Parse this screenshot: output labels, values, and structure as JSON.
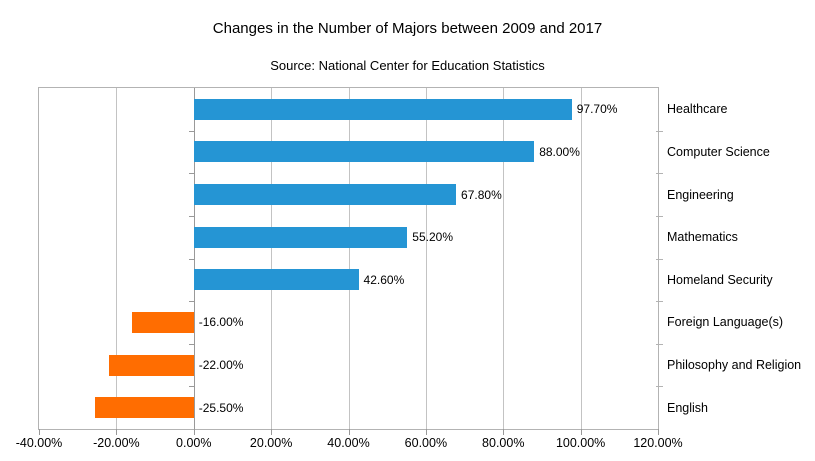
{
  "chart_data": {
    "type": "bar",
    "orientation": "horizontal",
    "title": "Changes in the Number of Majors between 2009 and 2017",
    "subtitle": "Source: National Center for Education Statistics",
    "categories": [
      "Healthcare",
      "Computer Science",
      "Engineering",
      "Mathematics",
      "Homeland Security",
      "Foreign Language(s)",
      "Philosophy and Religion",
      "English"
    ],
    "values": [
      97.7,
      88.0,
      67.8,
      55.2,
      42.6,
      -16.0,
      -22.0,
      -25.5
    ],
    "value_labels": [
      "97.70%",
      "88.00%",
      "67.80%",
      "55.20%",
      "42.60%",
      "-16.00%",
      "-22.00%",
      "-25.50%"
    ],
    "x_ticks": [
      "-40.00%",
      "-20.00%",
      "0.00%",
      "20.00%",
      "40.00%",
      "60.00%",
      "80.00%",
      "100.00%",
      "120.00%"
    ],
    "x_tick_values": [
      -40,
      -20,
      0,
      20,
      40,
      60,
      80,
      100,
      120
    ],
    "xlim": [
      -40,
      120
    ],
    "xlabel": "",
    "ylabel": "",
    "grid": "vertical",
    "legend": "none",
    "bar_colors": {
      "positive": "#2595d4",
      "negative": "#ff6d01"
    },
    "gridline_color": "#c3c3c3",
    "axis_color": "#999999",
    "border_color": "#b3b3b3"
  }
}
